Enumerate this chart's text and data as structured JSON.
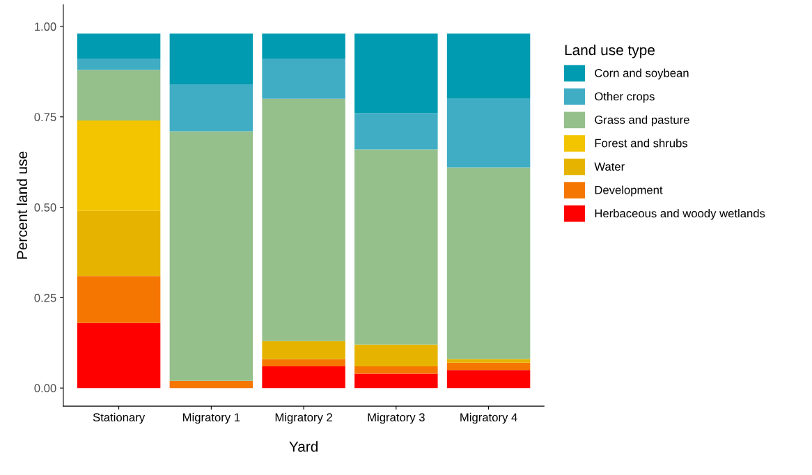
{
  "chart_data": {
    "type": "bar",
    "stacked": true,
    "xlabel": "Yard",
    "ylabel": "Percent land use",
    "legend_title": "Land use type",
    "legend": "right",
    "grid": false,
    "categories": [
      "Stationary",
      "Migratory 1",
      "Migratory 2",
      "Migratory 3",
      "Migratory 4"
    ],
    "ylim": [
      -0.05,
      1.06
    ],
    "yticks": [
      {
        "value": 0,
        "label": "0.00"
      },
      {
        "value": 0.25,
        "label": "0.25"
      },
      {
        "value": 0.5,
        "label": "0.50"
      },
      {
        "value": 0.75,
        "label": "0.75"
      },
      {
        "value": 1,
        "label": "1.00"
      }
    ],
    "series": [
      {
        "name": "Herbaceous and woody wetlands",
        "color": "#ff0000",
        "values": [
          0.18,
          0,
          0.06,
          0.04,
          0.05
        ]
      },
      {
        "name": "Development",
        "color": "#f57600",
        "values": [
          0.13,
          0.02,
          0.02,
          0.02,
          0.02
        ]
      },
      {
        "name": "Water",
        "color": "#e6b400",
        "values": [
          0.18,
          0,
          0.05,
          0.06,
          0.01
        ]
      },
      {
        "name": "Forest and shrubs",
        "color": "#f2c500",
        "values": [
          0.25,
          0,
          0,
          0,
          0
        ]
      },
      {
        "name": "Grass and pasture",
        "color": "#95c08b",
        "values": [
          0.14,
          0.69,
          0.67,
          0.54,
          0.53
        ]
      },
      {
        "name": "Other crops",
        "color": "#40adc4",
        "values": [
          0.03,
          0.13,
          0.11,
          0.1,
          0.19
        ]
      },
      {
        "name": "Corn and soybean",
        "color": "#009bb0",
        "values": [
          0.07,
          0.14,
          0.07,
          0.22,
          0.18
        ]
      }
    ]
  }
}
